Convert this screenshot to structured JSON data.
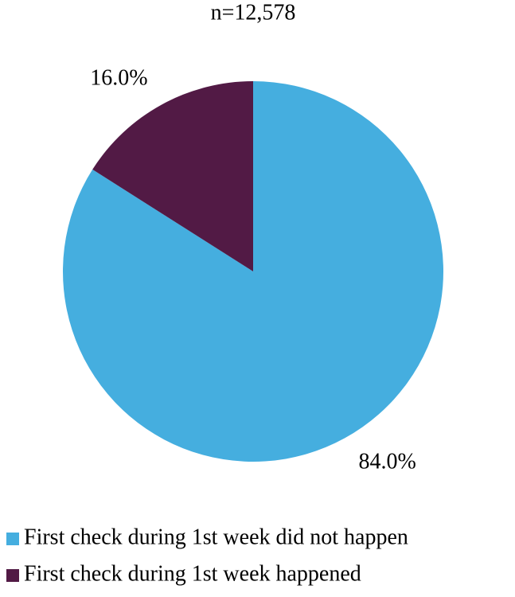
{
  "chart_data": {
    "type": "pie",
    "title": "n=12,578",
    "categories": [
      "First check during 1st week did not happen",
      "First check during 1st week happened"
    ],
    "values": [
      84.0,
      16.0
    ],
    "value_labels": [
      "84.0%",
      "16.0%"
    ],
    "colors": [
      "#45aedf",
      "#521a45"
    ]
  }
}
